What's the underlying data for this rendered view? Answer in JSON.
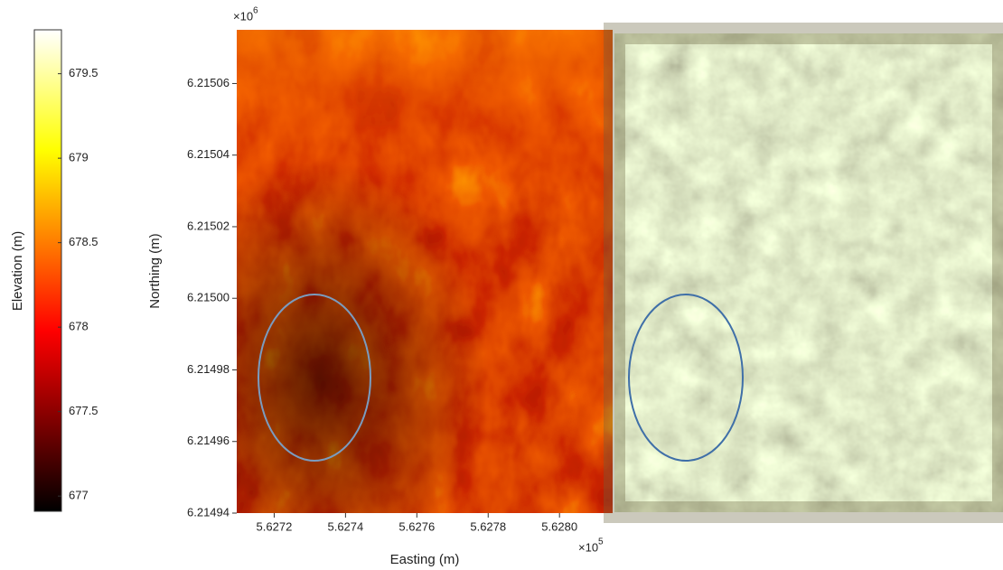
{
  "chart_data": {
    "type": "heatmap",
    "xlabel": "Easting (m)",
    "ylabel": "Northing (m)",
    "x_offset_text": "×10",
    "x_offset_exponent": "5",
    "y_offset_text": "×10",
    "y_offset_exponent": "6",
    "xlim": [
      5.627095,
      5.628149
    ],
    "xticks": [
      5.6272,
      5.6274,
      5.6276,
      5.6278,
      {
        "value": 5.628,
        "label": "5.6280"
      }
    ],
    "ylim": [
      6.21494,
      6.215075
    ],
    "yticks": [
      6.21494,
      6.21496,
      6.21498,
      {
        "value": 6.215,
        "label": "6.21500"
      },
      6.21502,
      6.21504,
      6.21506
    ],
    "colorbar": {
      "label": "Elevation (m)",
      "clim": [
        676.91,
        679.76
      ],
      "ticks": [
        677,
        677.5,
        678,
        678.5,
        679,
        679.5
      ],
      "colormap": "hot"
    }
  }
}
